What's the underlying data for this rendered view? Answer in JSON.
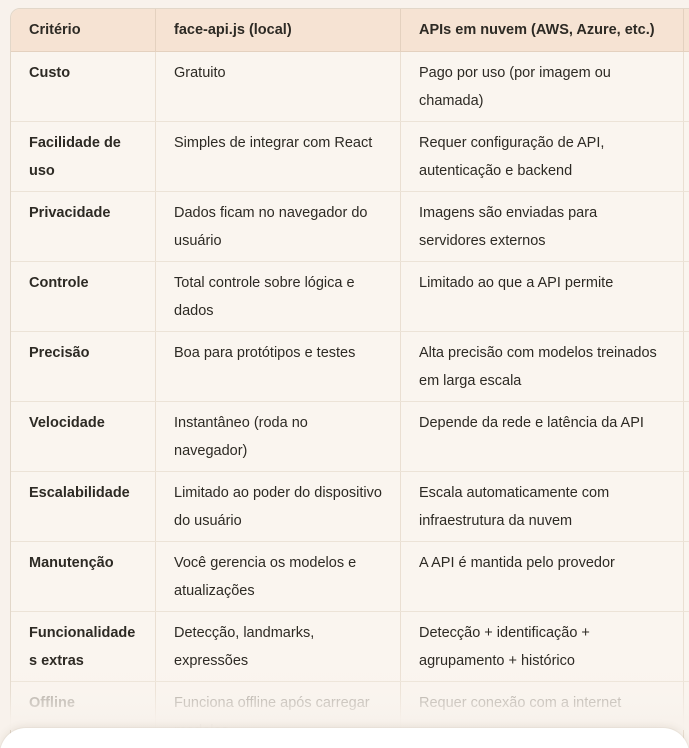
{
  "table": {
    "columns": [
      "Critério",
      "face-api.js (local)",
      "APIs em nuvem (AWS, Azure, etc.)"
    ],
    "rows": [
      {
        "criterion": "Custo",
        "local": "Gratuito",
        "cloud": "Pago por uso (por imagem ou chamada)"
      },
      {
        "criterion": "Facilidade de uso",
        "local": "Simples de integrar com React",
        "cloud": "Requer configuração de API, autenticação e backend"
      },
      {
        "criterion": "Privacidade",
        "local": "Dados ficam no navegador do usuário",
        "cloud": "Imagens são enviadas para servidores externos"
      },
      {
        "criterion": "Controle",
        "local": "Total controle sobre lógica e dados",
        "cloud": "Limitado ao que a API permite"
      },
      {
        "criterion": "Precisão",
        "local": "Boa para protótipos e testes",
        "cloud": "Alta precisão com modelos treinados em larga escala"
      },
      {
        "criterion": "Velocidade",
        "local": "Instantâneo (roda no navegador)",
        "cloud": "Depende da rede e latência da API"
      },
      {
        "criterion": "Escalabilidade",
        "local": "Limitado ao poder do dispositivo do usuário",
        "cloud": "Escala automaticamente com infraestrutura da nuvem"
      },
      {
        "criterion": "Manutenção",
        "local": "Você gerencia os modelos e atualizações",
        "cloud": "A API é mantida pelo provedor"
      },
      {
        "criterion": "Funcionalidades extras",
        "local": "Detecção, landmarks, expressões",
        "cloud": "Detecção + identificação + agrupamento + histórico"
      },
      {
        "criterion": "Offline",
        "local": "Funciona offline após carregar modelos",
        "cloud": "Requer conexão com a internet",
        "faded": true
      }
    ],
    "colors": {
      "page_bg": "#f8f2ec",
      "header_bg": "#f6e3d3",
      "body_bg": "#faf5ef",
      "outer_border": "#e2d7c9",
      "row_divider": "#ece3d7",
      "text": "#2d2a24",
      "faded_text": "#a8a29a",
      "composer_bg": "#ffffff"
    }
  }
}
